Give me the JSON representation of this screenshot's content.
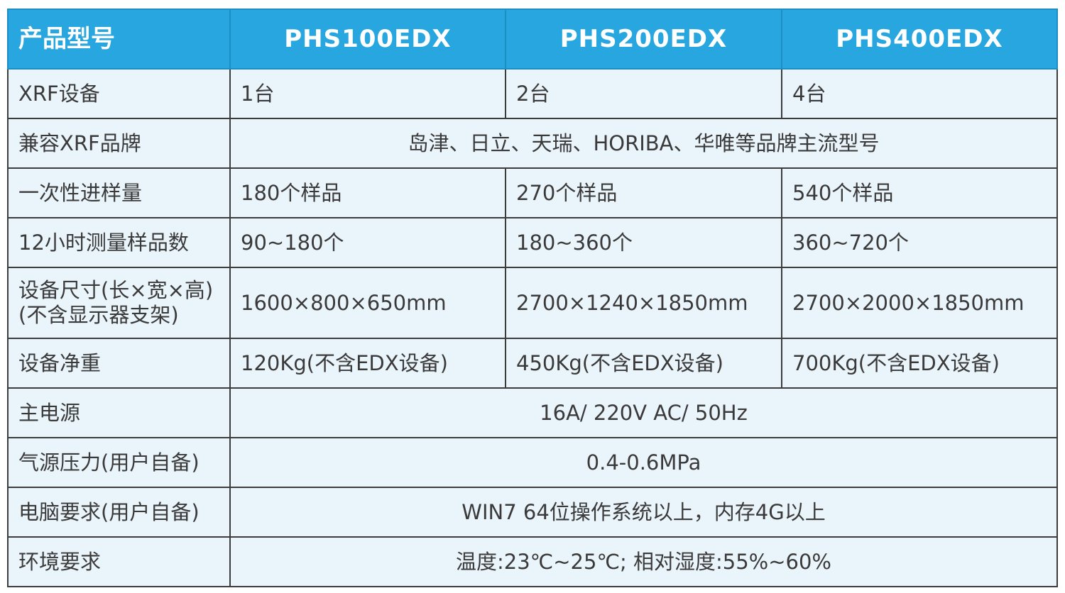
{
  "header": {
    "label": "产品型号",
    "models": [
      "PHS100EDX",
      "PHS200EDX",
      "PHS400EDX"
    ]
  },
  "rows": {
    "xrf_devices": {
      "label": "XRF设备",
      "values": [
        "1台",
        "2台",
        "4台"
      ]
    },
    "compatible_brands": {
      "label": "兼容XRF品牌",
      "value": "岛津、日立、天瑞、HORIBA、华唯等品牌主流型号"
    },
    "batch_capacity": {
      "label": "一次性进样量",
      "values": [
        "180个样品",
        "270个样品",
        "540个样品"
      ]
    },
    "samples_12h": {
      "label": "12小时测量样品数",
      "values": [
        "90~180个",
        "180~360个",
        "360~720个"
      ]
    },
    "dimensions": {
      "label_line1": "设备尺寸(长×宽×高)",
      "label_line2": "(不含显示器支架)",
      "values": [
        "1600×800×650mm",
        "2700×1240×1850mm",
        "2700×2000×1850mm"
      ]
    },
    "net_weight": {
      "label": "设备净重",
      "values": [
        "120Kg(不含EDX设备)",
        "450Kg(不含EDX设备)",
        "700Kg(不含EDX设备)"
      ]
    },
    "power": {
      "label": "主电源",
      "value": "16A/ 220V AC/ 50Hz"
    },
    "air_pressure": {
      "label": "气源压力(用户自备)",
      "value": "0.4-0.6MPa"
    },
    "computer": {
      "label": "电脑要求(用户自备)",
      "value": "WIN7 64位操作系统以上，内存4G以上"
    },
    "environment": {
      "label": "环境要求",
      "value": "温度:23℃~25℃; 相对湿度:55%~60%"
    }
  },
  "colors": {
    "header_bg": "#27a6df",
    "header_text": "#ffffff",
    "body_bg": "#eaf4fb",
    "border": "#3c3c3c",
    "text": "#3a3a3a"
  }
}
